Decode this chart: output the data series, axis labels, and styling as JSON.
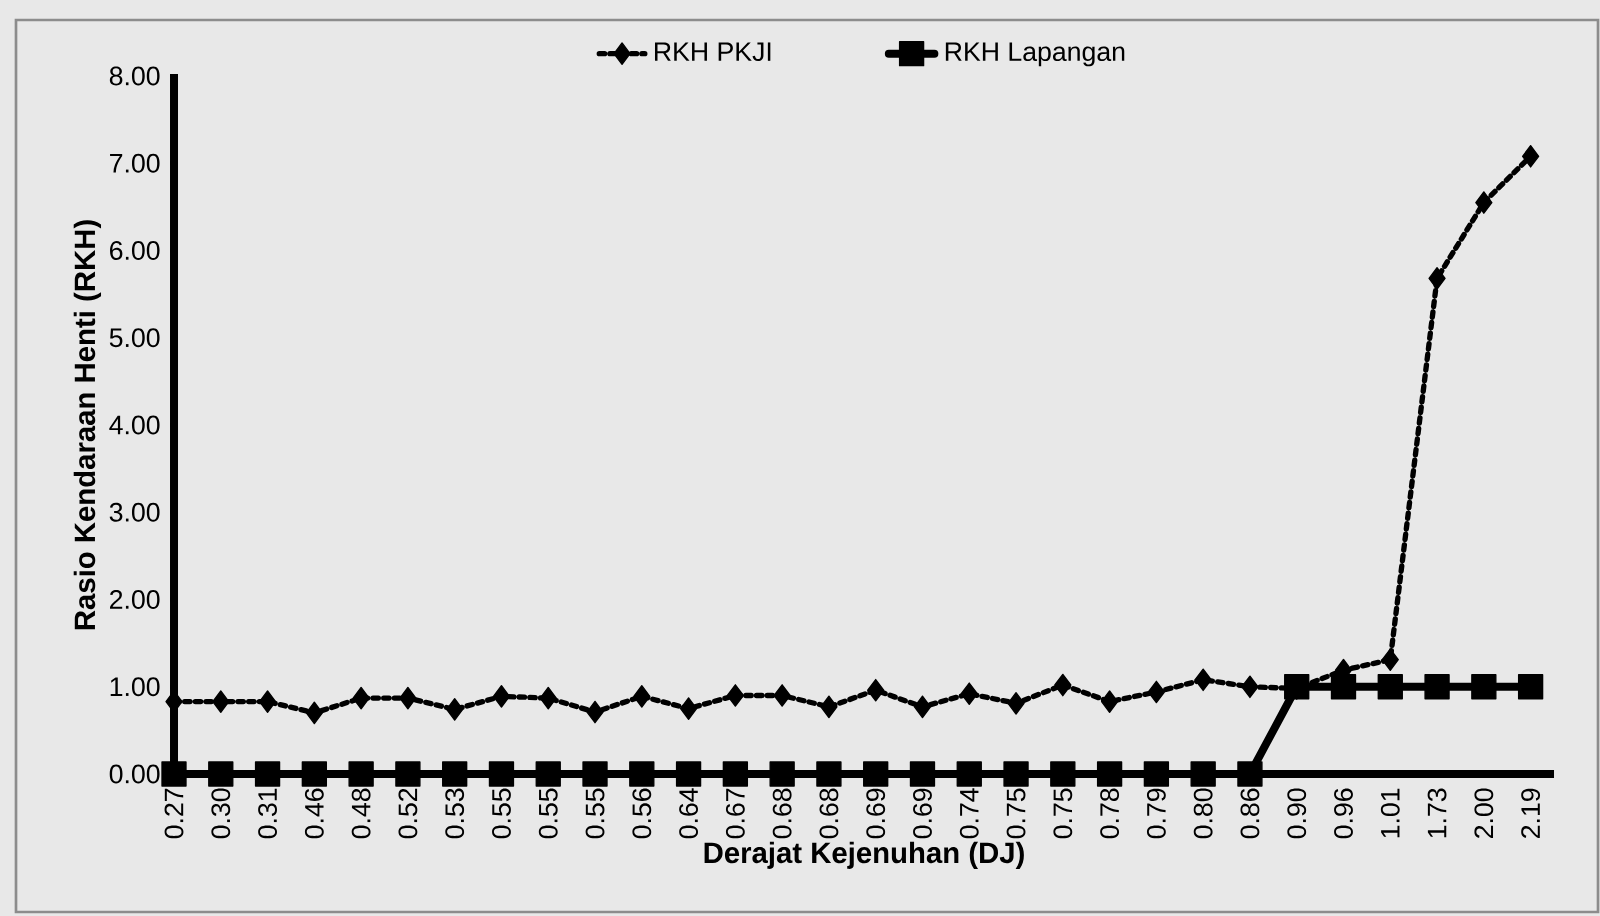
{
  "chart_data": {
    "type": "line",
    "xlabel": "Derajat Kejenuhan (DJ)",
    "ylabel": "Rasio Kendaraan Henti (RKH)",
    "categories": [
      "0.27",
      "0.30",
      "0.31",
      "0.46",
      "0.48",
      "0.52",
      "0.53",
      "0.55",
      "0.55",
      "0.55",
      "0.56",
      "0.64",
      "0.67",
      "0.68",
      "0.68",
      "0.69",
      "0.69",
      "0.74",
      "0.75",
      "0.75",
      "0.78",
      "0.79",
      "0.80",
      "0.86",
      "0.90",
      "0.96",
      "1.01",
      "1.73",
      "2.00",
      "2.19"
    ],
    "series": [
      {
        "name": "RKH PKJI",
        "color": "#000000",
        "marker": "diamond",
        "line_style": "dotted",
        "values": [
          0.83,
          0.83,
          0.83,
          0.7,
          0.87,
          0.87,
          0.74,
          0.89,
          0.87,
          0.71,
          0.89,
          0.75,
          0.9,
          0.9,
          0.77,
          0.96,
          0.77,
          0.92,
          0.81,
          1.02,
          0.83,
          0.94,
          1.08,
          1.0,
          0.98,
          1.19,
          1.31,
          5.68,
          6.55,
          7.08
        ]
      },
      {
        "name": "RKH Lapangan",
        "color": "#000000",
        "marker": "square",
        "line_style": "solid",
        "values": [
          0,
          0,
          0,
          0,
          0,
          0,
          0,
          0,
          0,
          0,
          0,
          0,
          0,
          0,
          0,
          0,
          0,
          0,
          0,
          0,
          0,
          0,
          0,
          0,
          1,
          1,
          1,
          1,
          1,
          1
        ]
      }
    ],
    "ylim": [
      0,
      8
    ],
    "yticks": [
      {
        "value": 0,
        "label": "0.00"
      },
      {
        "value": 1,
        "label": "1.00"
      },
      {
        "value": 2,
        "label": "2.00"
      },
      {
        "value": 3,
        "label": "3.00"
      },
      {
        "value": 4,
        "label": "4.00"
      },
      {
        "value": 5,
        "label": "5.00"
      },
      {
        "value": 6,
        "label": "6.00"
      },
      {
        "value": 7,
        "label": "7.00"
      },
      {
        "value": 8,
        "label": "8.00"
      }
    ],
    "grid": false,
    "legend": "top"
  }
}
